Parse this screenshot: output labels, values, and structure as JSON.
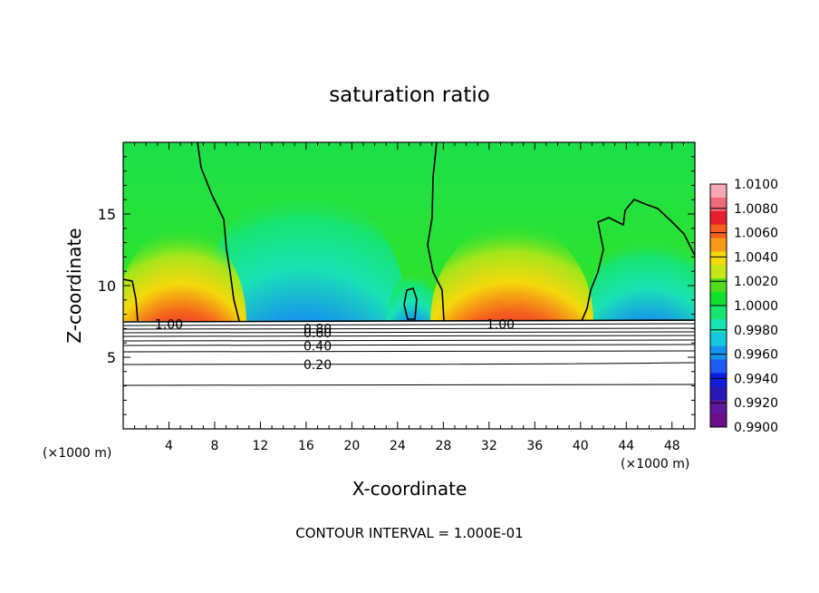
{
  "chart_data": {
    "type": "heatmap",
    "title": "saturation ratio",
    "xlabel": "X-coordinate",
    "ylabel": "Z-coordinate",
    "x_unit_left": "(×1000 m)",
    "x_unit_right": "(×1000 m)",
    "footer": "CONTOUR INTERVAL = 1.000E-01",
    "xlim": [
      0,
      50
    ],
    "ylim": [
      0,
      20
    ],
    "x_ticks": [
      4,
      8,
      12,
      16,
      20,
      24,
      28,
      32,
      36,
      40,
      44,
      48
    ],
    "y_ticks": [
      5,
      10,
      15
    ],
    "colorbar": {
      "range": [
        0.99,
        1.01
      ],
      "labels": [
        "1.0100",
        "1.0080",
        "1.0060",
        "1.0040",
        "1.0020",
        "1.0000",
        "0.9980",
        "0.9960",
        "0.9940",
        "0.9920",
        "0.9900"
      ],
      "colors": [
        "#f7a8b4",
        "#f06a7a",
        "#e81f2d",
        "#f5611d",
        "#f79a17",
        "#f4d90c",
        "#c6e617",
        "#52dc19",
        "#10e02f",
        "#17e56f",
        "#19e3b3",
        "#15c8dd",
        "#1693ec",
        "#1d5cf0",
        "#0d1ee0",
        "#2818b7",
        "#5e199c",
        "#6a0f86"
      ]
    },
    "contour_labels": [
      {
        "text": "1.00",
        "x": 4.0,
        "y": 7.3
      },
      {
        "text": "1.00",
        "x": 33.0,
        "y": 7.3
      },
      {
        "text": "0.80",
        "x": 17.0,
        "y": 7.0
      },
      {
        "text": "0.60",
        "x": 17.0,
        "y": 6.7
      },
      {
        "text": "0.40",
        "x": 17.0,
        "y": 5.8
      },
      {
        "text": "0.20",
        "x": 17.0,
        "y": 4.5
      }
    ]
  }
}
